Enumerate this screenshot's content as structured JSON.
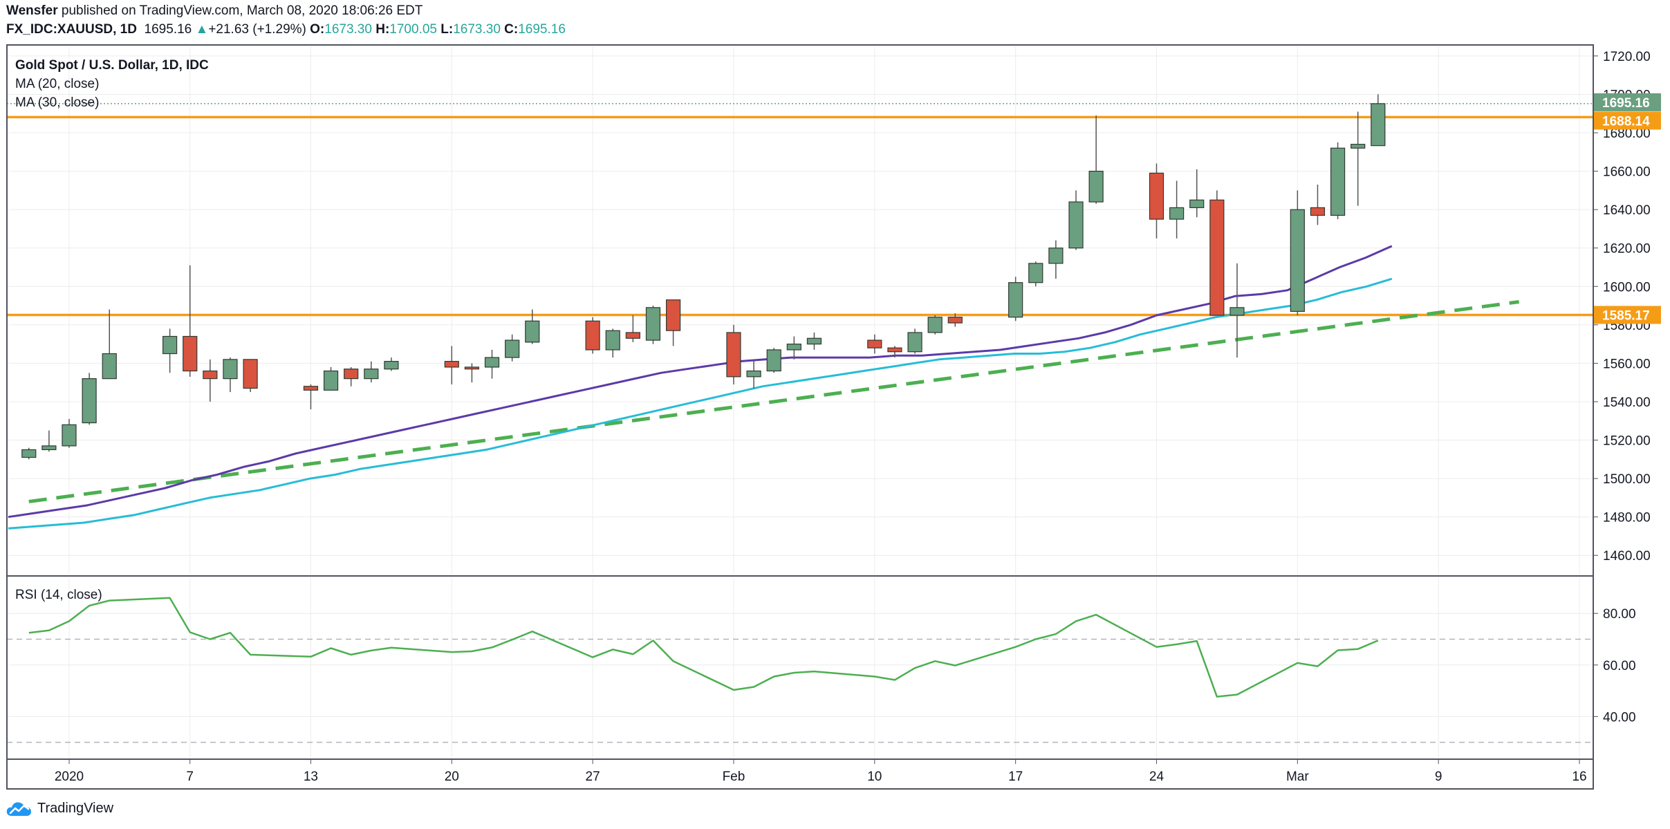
{
  "header": {
    "author": "Wensfer",
    "published_text": "published on TradingView.com, March 08, 2020 18:06:26 EDT",
    "symbol": "FX_IDC:XAUUSD, 1D",
    "last": "1695.16",
    "change_arrow": "▲",
    "change": "+21.63 (+1.29%)",
    "open_label": "O:",
    "open": "1673.30",
    "high_label": "H:",
    "high": "1700.05",
    "low_label": "L:",
    "low": "1673.30",
    "close_label": "C:",
    "close": "1695.16"
  },
  "legend": {
    "title": "Gold Spot / U.S. Dollar, 1D, IDC",
    "ma20": "MA (20, close)",
    "ma30": "MA (30, close)",
    "rsi": "RSI (14, close)"
  },
  "footer": {
    "brand": "TradingView",
    "logo_icon": "tradingview-cloud-icon"
  },
  "colors": {
    "up": "#6a9f7f",
    "down": "#d9533f",
    "wick": "#555555",
    "ma20": "#5b3aa8",
    "ma30": "#26bcd7",
    "trend": "#4caf50",
    "hline": "#f59c16",
    "rsi": "#4caf50",
    "grid": "#ececec",
    "last_price_badge": "#6a9f7f"
  },
  "chart_data": [
    {
      "type": "candlestick",
      "title": "Gold Spot / U.S. Dollar, 1D, IDC",
      "ylim": [
        1450,
        1725
      ],
      "y_ticks": [
        1460,
        1480,
        1500,
        1520,
        1540,
        1560,
        1580,
        1600,
        1620,
        1640,
        1660,
        1680,
        1700,
        1720
      ],
      "x_ticks": [
        {
          "label": "2020",
          "date": "2020-01-01"
        },
        {
          "label": "7",
          "date": "2020-01-07"
        },
        {
          "label": "13",
          "date": "2020-01-13"
        },
        {
          "label": "20",
          "date": "2020-01-20"
        },
        {
          "label": "27",
          "date": "2020-01-27"
        },
        {
          "label": "Feb",
          "date": "2020-02-03"
        },
        {
          "label": "10",
          "date": "2020-02-10"
        },
        {
          "label": "17",
          "date": "2020-02-17"
        },
        {
          "label": "24",
          "date": "2020-02-24"
        },
        {
          "label": "Mar",
          "date": "2020-03-02"
        },
        {
          "label": "9",
          "date": "2020-03-09"
        },
        {
          "label": "16",
          "date": "2020-03-16"
        }
      ],
      "x_range": [
        "2019-12-30",
        "2020-03-16"
      ],
      "candles": [
        {
          "date": "2019-12-30",
          "o": 1511,
          "h": 1516,
          "l": 1510,
          "c": 1515
        },
        {
          "date": "2019-12-31",
          "o": 1515,
          "h": 1525,
          "l": 1514,
          "c": 1517
        },
        {
          "date": "2020-01-01",
          "o": 1517,
          "h": 1531,
          "l": 1516,
          "c": 1528
        },
        {
          "date": "2020-01-02",
          "o": 1529,
          "h": 1555,
          "l": 1528,
          "c": 1552
        },
        {
          "date": "2020-01-03",
          "o": 1552,
          "h": 1588,
          "l": 1552,
          "c": 1565
        },
        {
          "date": "2020-01-06",
          "o": 1565,
          "h": 1578,
          "l": 1555,
          "c": 1574
        },
        {
          "date": "2020-01-07",
          "o": 1574,
          "h": 1611,
          "l": 1553,
          "c": 1556
        },
        {
          "date": "2020-01-08",
          "o": 1556,
          "h": 1562,
          "l": 1540,
          "c": 1552
        },
        {
          "date": "2020-01-09",
          "o": 1552,
          "h": 1563,
          "l": 1545,
          "c": 1562
        },
        {
          "date": "2020-01-10",
          "o": 1562,
          "h": 1562,
          "l": 1545,
          "c": 1547
        },
        {
          "date": "2020-01-13",
          "o": 1548,
          "h": 1549,
          "l": 1536,
          "c": 1546
        },
        {
          "date": "2020-01-14",
          "o": 1546,
          "h": 1558,
          "l": 1546,
          "c": 1556
        },
        {
          "date": "2020-01-15",
          "o": 1557,
          "h": 1558,
          "l": 1548,
          "c": 1552
        },
        {
          "date": "2020-01-16",
          "o": 1552,
          "h": 1561,
          "l": 1550,
          "c": 1557
        },
        {
          "date": "2020-01-17",
          "o": 1557,
          "h": 1563,
          "l": 1556,
          "c": 1561
        },
        {
          "date": "2020-01-20",
          "o": 1561,
          "h": 1569,
          "l": 1549,
          "c": 1558
        },
        {
          "date": "2020-01-21",
          "o": 1558,
          "h": 1560,
          "l": 1550,
          "c": 1557
        },
        {
          "date": "2020-01-22",
          "o": 1558,
          "h": 1567,
          "l": 1552,
          "c": 1563
        },
        {
          "date": "2020-01-23",
          "o": 1563,
          "h": 1575,
          "l": 1561,
          "c": 1572
        },
        {
          "date": "2020-01-24",
          "o": 1571,
          "h": 1588,
          "l": 1570,
          "c": 1582
        },
        {
          "date": "2020-01-27",
          "o": 1582,
          "h": 1584,
          "l": 1565,
          "c": 1567
        },
        {
          "date": "2020-01-28",
          "o": 1567,
          "h": 1578,
          "l": 1563,
          "c": 1577
        },
        {
          "date": "2020-01-29",
          "o": 1576,
          "h": 1585,
          "l": 1571,
          "c": 1573
        },
        {
          "date": "2020-01-30",
          "o": 1572,
          "h": 1590,
          "l": 1570,
          "c": 1589
        },
        {
          "date": "2020-01-31",
          "o": 1593,
          "h": 1593,
          "l": 1569,
          "c": 1577
        },
        {
          "date": "2020-02-03",
          "o": 1576,
          "h": 1580,
          "l": 1549,
          "c": 1553
        },
        {
          "date": "2020-02-04",
          "o": 1553,
          "h": 1562,
          "l": 1547,
          "c": 1556
        },
        {
          "date": "2020-02-05",
          "o": 1556,
          "h": 1568,
          "l": 1555,
          "c": 1567
        },
        {
          "date": "2020-02-06",
          "o": 1567,
          "h": 1574,
          "l": 1562,
          "c": 1570
        },
        {
          "date": "2020-02-07",
          "o": 1570,
          "h": 1576,
          "l": 1567,
          "c": 1573
        },
        {
          "date": "2020-02-10",
          "o": 1572,
          "h": 1575,
          "l": 1565,
          "c": 1568
        },
        {
          "date": "2020-02-11",
          "o": 1568,
          "h": 1569,
          "l": 1563,
          "c": 1566
        },
        {
          "date": "2020-02-12",
          "o": 1566,
          "h": 1578,
          "l": 1565,
          "c": 1576
        },
        {
          "date": "2020-02-13",
          "o": 1576,
          "h": 1585,
          "l": 1575,
          "c": 1584
        },
        {
          "date": "2020-02-14",
          "o": 1584,
          "h": 1586,
          "l": 1579,
          "c": 1581
        },
        {
          "date": "2020-02-17",
          "o": 1584,
          "h": 1605,
          "l": 1582,
          "c": 1602
        },
        {
          "date": "2020-02-18",
          "o": 1602,
          "h": 1613,
          "l": 1600,
          "c": 1612
        },
        {
          "date": "2020-02-19",
          "o": 1612,
          "h": 1624,
          "l": 1604,
          "c": 1620
        },
        {
          "date": "2020-02-20",
          "o": 1620,
          "h": 1650,
          "l": 1619,
          "c": 1644
        },
        {
          "date": "2020-02-21",
          "o": 1644,
          "h": 1689,
          "l": 1643,
          "c": 1660
        },
        {
          "date": "2020-02-24",
          "o": 1659,
          "h": 1664,
          "l": 1625,
          "c": 1635
        },
        {
          "date": "2020-02-25",
          "o": 1635,
          "h": 1655,
          "l": 1625,
          "c": 1641
        },
        {
          "date": "2020-02-26",
          "o": 1641,
          "h": 1661,
          "l": 1636,
          "c": 1645
        },
        {
          "date": "2020-02-27",
          "o": 1645,
          "h": 1650,
          "l": 1585,
          "c": 1585
        },
        {
          "date": "2020-02-28",
          "o": 1585,
          "h": 1612,
          "l": 1563,
          "c": 1589
        },
        {
          "date": "2020-03-02",
          "o": 1587,
          "h": 1650,
          "l": 1585,
          "c": 1640
        },
        {
          "date": "2020-03-03",
          "o": 1641,
          "h": 1653,
          "l": 1632,
          "c": 1637
        },
        {
          "date": "2020-03-04",
          "o": 1637,
          "h": 1675,
          "l": 1635,
          "c": 1672
        },
        {
          "date": "2020-03-05",
          "o": 1672,
          "h": 1691,
          "l": 1642,
          "c": 1674
        },
        {
          "date": "2020-03-06",
          "o": 1673.3,
          "h": 1700.05,
          "l": 1673.3,
          "c": 1695.16
        }
      ],
      "ma20": [
        1480,
        1482,
        1484,
        1486,
        1489,
        1492,
        1495,
        1499,
        1502,
        1506,
        1509,
        1513,
        1516,
        1519,
        1522,
        1525,
        1528,
        1531,
        1534,
        1537,
        1540,
        1543,
        1546,
        1549,
        1552,
        1555,
        1557,
        1559,
        1561,
        1562,
        1563,
        1563,
        1563,
        1563,
        1564,
        1564,
        1565,
        1566,
        1567,
        1569,
        1571,
        1573,
        1576,
        1580,
        1585,
        1588,
        1591,
        1595,
        1596,
        1598,
        1604,
        1610,
        1615,
        1621
      ],
      "ma30": [
        1474,
        1475,
        1476,
        1477,
        1479,
        1481,
        1484,
        1487,
        1490,
        1492,
        1494,
        1497,
        1500,
        1502,
        1505,
        1507,
        1509,
        1511,
        1513,
        1515,
        1518,
        1521,
        1524,
        1527,
        1530,
        1533,
        1536,
        1539,
        1542,
        1545,
        1548,
        1550,
        1552,
        1554,
        1556,
        1558,
        1560,
        1562,
        1563,
        1564,
        1565,
        1565,
        1566,
        1568,
        1571,
        1575,
        1578,
        1581,
        1584,
        1586,
        1588,
        1590,
        1593,
        1597,
        1600,
        1604
      ],
      "trendline": {
        "from": {
          "date": "2019-12-30",
          "price": 1488
        },
        "to": {
          "date": "2020-03-13",
          "price": 1592
        }
      },
      "hlines": [
        1688.14,
        1585.17
      ],
      "price_labels": [
        {
          "value": 1695.16,
          "label": "1695.16"
        },
        {
          "value": 1688.14,
          "label": "1688.14"
        },
        {
          "value": 1585.17,
          "label": "1585.17"
        }
      ]
    },
    {
      "type": "line",
      "title": "RSI (14, close)",
      "ylim": [
        24,
        94
      ],
      "y_ticks": [
        40,
        60,
        80
      ],
      "levels": [
        70,
        30
      ],
      "values": [
        72.5,
        73.4,
        77,
        83,
        85,
        86,
        72.7,
        70,
        72.5,
        64,
        63.2,
        66.5,
        64,
        65.6,
        66.7,
        65,
        65.3,
        66.8,
        69.8,
        73,
        63,
        66,
        64.2,
        69.5,
        61.5,
        50.3,
        51.5,
        55.5,
        57,
        57.5,
        55.5,
        54.2,
        58.8,
        61.5,
        59.8,
        67,
        70,
        72,
        77,
        79.5,
        67,
        68,
        69.3,
        47.7,
        48.5,
        60.8,
        59.5,
        65.7,
        66.2,
        69.5
      ]
    }
  ]
}
